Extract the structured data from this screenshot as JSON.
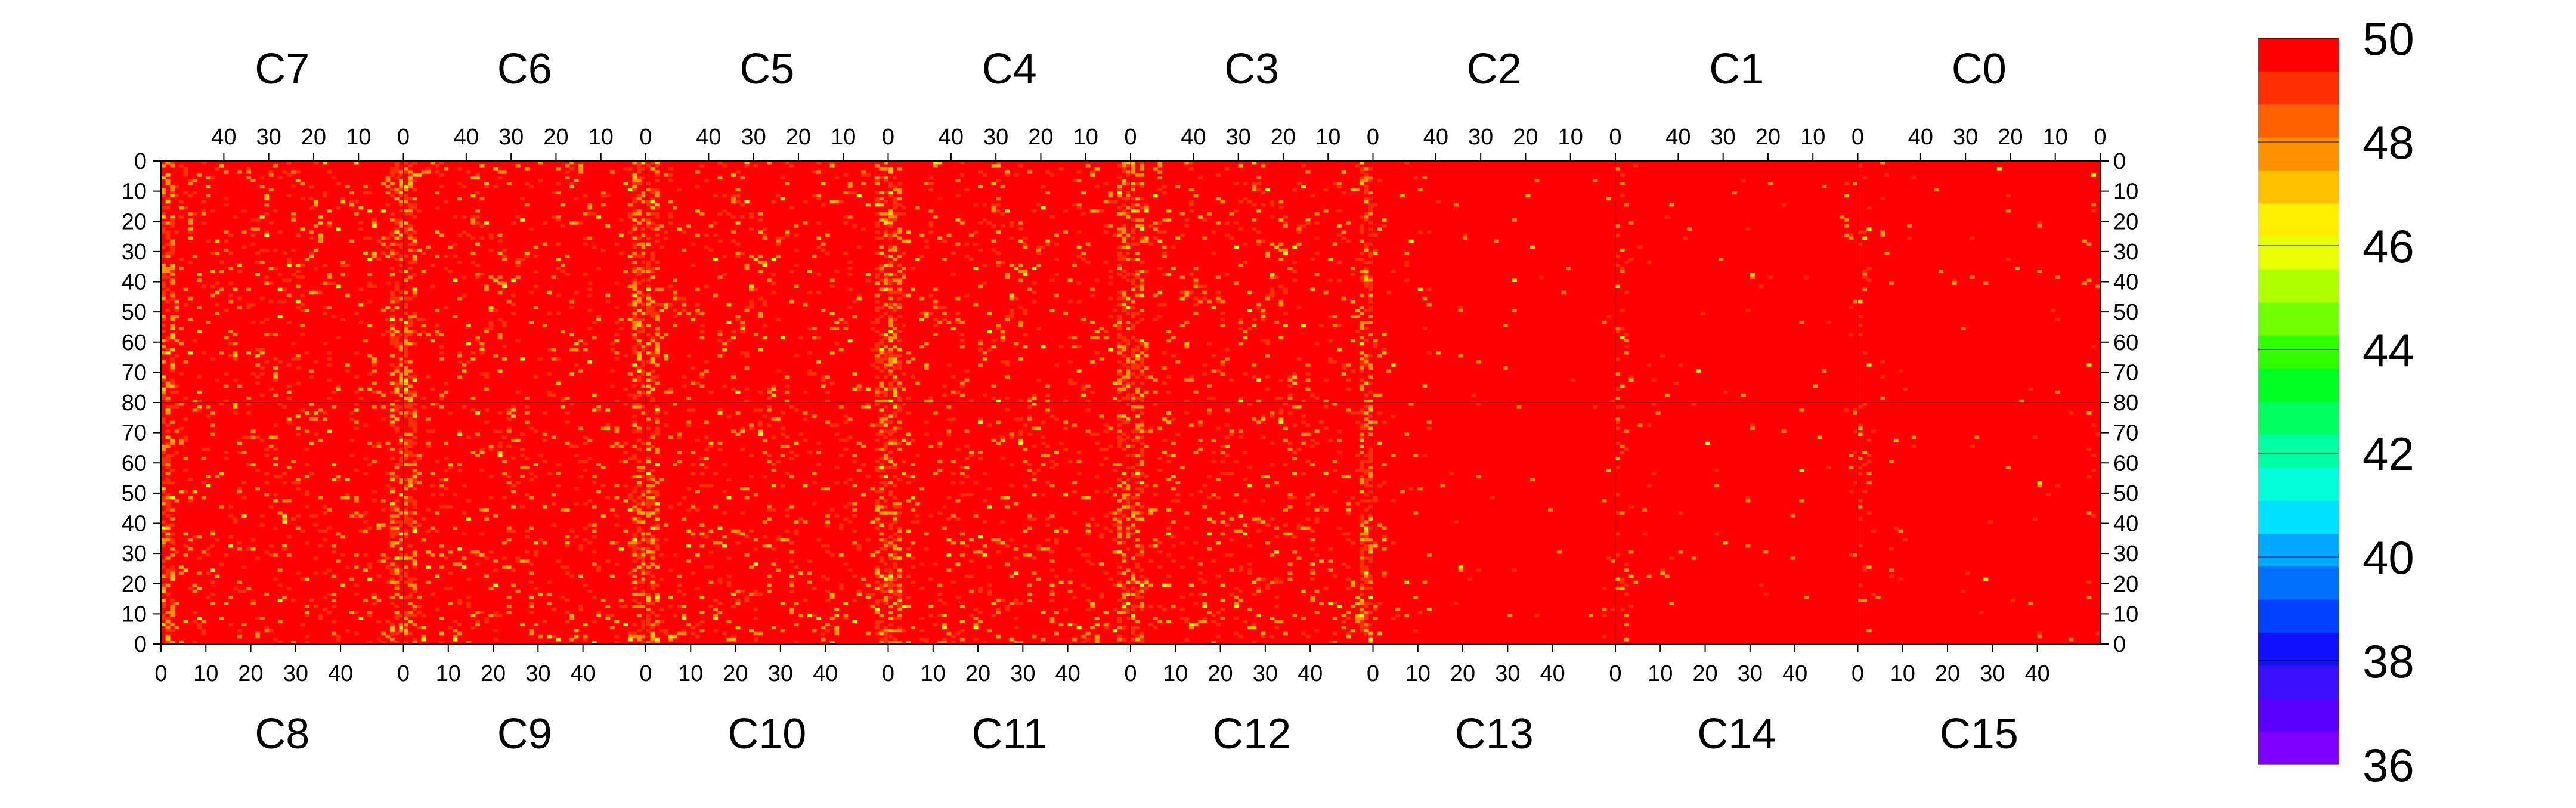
{
  "chart_data": {
    "type": "heatmap",
    "panels_top": {
      "labels": [
        "C7",
        "C6",
        "C5",
        "C4",
        "C3",
        "C2",
        "C1",
        "C0"
      ],
      "tick_labels": [
        "40",
        "30",
        "20",
        "10",
        "0"
      ],
      "tick_values": [
        40,
        30,
        20,
        10,
        0
      ]
    },
    "panels_bottom": {
      "labels": [
        "C8",
        "C9",
        "C10",
        "C11",
        "C12",
        "C13",
        "C14",
        "C15"
      ],
      "tick_labels": [
        "0",
        "10",
        "20",
        "30",
        "40"
      ],
      "tick_values": [
        0,
        10,
        20,
        30,
        40
      ]
    },
    "x_range_per_panel": [
      0,
      54
    ],
    "y_upper": {
      "range": [
        0,
        80
      ],
      "tick_labels": [
        "0",
        "10",
        "20",
        "30",
        "40",
        "50",
        "60",
        "70",
        "80"
      ],
      "tick_values": [
        0,
        10,
        20,
        30,
        40,
        50,
        60,
        70,
        80
      ],
      "direction": "down"
    },
    "y_lower": {
      "range": [
        0,
        80
      ],
      "tick_labels": [
        "80",
        "70",
        "60",
        "50",
        "40",
        "30",
        "20",
        "10",
        "0"
      ],
      "tick_values": [
        80,
        70,
        60,
        50,
        40,
        30,
        20,
        10,
        0
      ],
      "direction": "up"
    },
    "z_range": [
      36,
      50
    ],
    "colorbar": {
      "tick_labels": [
        "50",
        "48",
        "46",
        "44",
        "42",
        "40",
        "38",
        "36"
      ],
      "tick_values": [
        50,
        48,
        46,
        44,
        42,
        40,
        38,
        36
      ],
      "colors": [
        "#7f00ff",
        "#5a00ff",
        "#3a10ff",
        "#1010ff",
        "#0040ff",
        "#0070ff",
        "#00a8ff",
        "#00e0ff",
        "#00ffd8",
        "#00ffa0",
        "#00ff60",
        "#00ff20",
        "#30ff00",
        "#70ff00",
        "#b0ff00",
        "#e8ff00",
        "#ffee00",
        "#ffc000",
        "#ff9000",
        "#ff6000",
        "#ff3000",
        "#ff0000"
      ]
    },
    "dominant_value": 50,
    "hot_columns_note_value": 47,
    "grid": false,
    "legend": "right"
  }
}
